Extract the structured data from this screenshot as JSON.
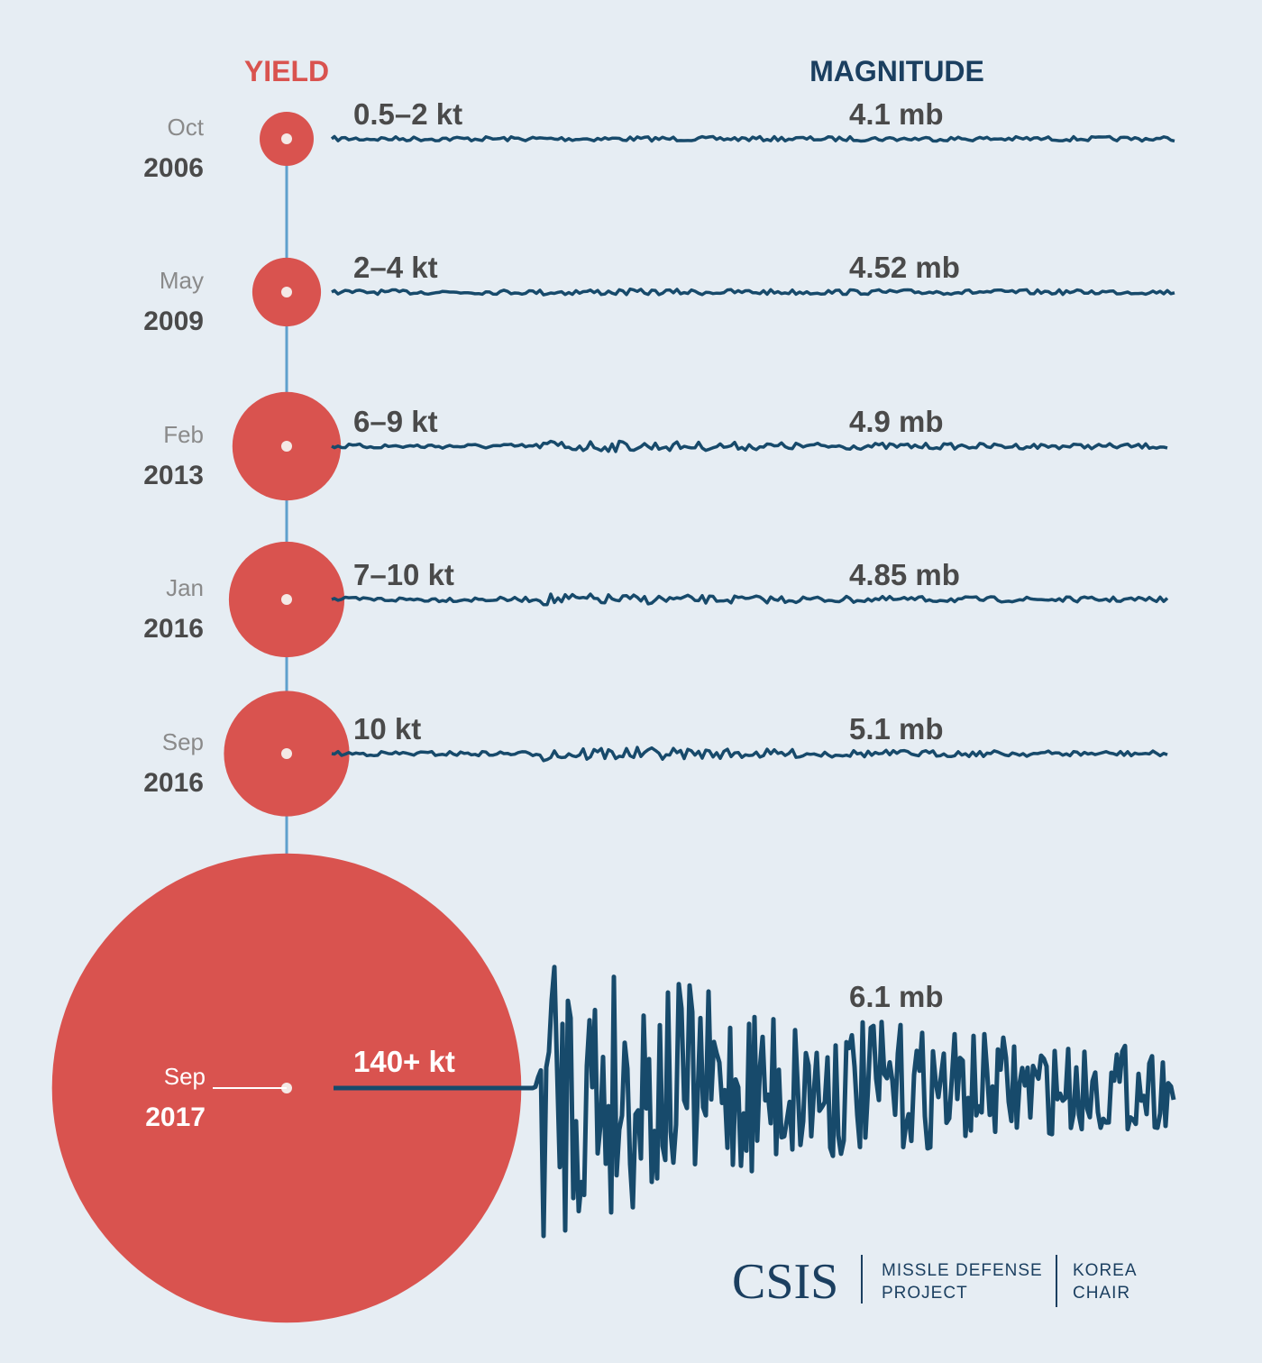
{
  "headers": {
    "yield": "YIELD",
    "magnitude": "MAGNITUDE"
  },
  "colors": {
    "background": "#e6edf3",
    "yield_red": "#d9534f",
    "magnitude_navy": "#1b3f60",
    "seismograph": "#174a6b",
    "connector": "#5fa0cc",
    "label_gray": "#4a4a4a",
    "month_gray": "#8a8a8a"
  },
  "chart_data": {
    "type": "scatter",
    "title": "",
    "xlabel": "",
    "ylabel": "",
    "events": [
      {
        "month": "Oct",
        "year": "2006",
        "yield_label": "0.5–2 kt",
        "yield_kt": 1.25,
        "magnitude_label": "4.1 mb",
        "magnitude_mb": 4.1
      },
      {
        "month": "May",
        "year": "2009",
        "yield_label": "2–4 kt",
        "yield_kt": 3,
        "magnitude_label": "4.52 mb",
        "magnitude_mb": 4.52
      },
      {
        "month": "Feb",
        "year": "2013",
        "yield_label": "6–9 kt",
        "yield_kt": 7.5,
        "magnitude_label": "4.9 mb",
        "magnitude_mb": 4.9
      },
      {
        "month": "Jan",
        "year": "2016",
        "yield_label": "7–10 kt",
        "yield_kt": 8.5,
        "magnitude_label": "4.85 mb",
        "magnitude_mb": 4.85
      },
      {
        "month": "Sep",
        "year": "2016",
        "yield_label": "10 kt",
        "yield_kt": 10,
        "magnitude_label": "5.1 mb",
        "magnitude_mb": 5.1
      },
      {
        "month": "Sep",
        "year": "2017",
        "yield_label": "140+ kt",
        "yield_kt": 140,
        "magnitude_label": "6.1 mb",
        "magnitude_mb": 6.1
      }
    ]
  },
  "footer": {
    "logo": "CSIS",
    "project_line1": "MISSLE DEFENSE",
    "project_line2": "PROJECT",
    "chair_line1": "KOREA",
    "chair_line2": "CHAIR"
  }
}
